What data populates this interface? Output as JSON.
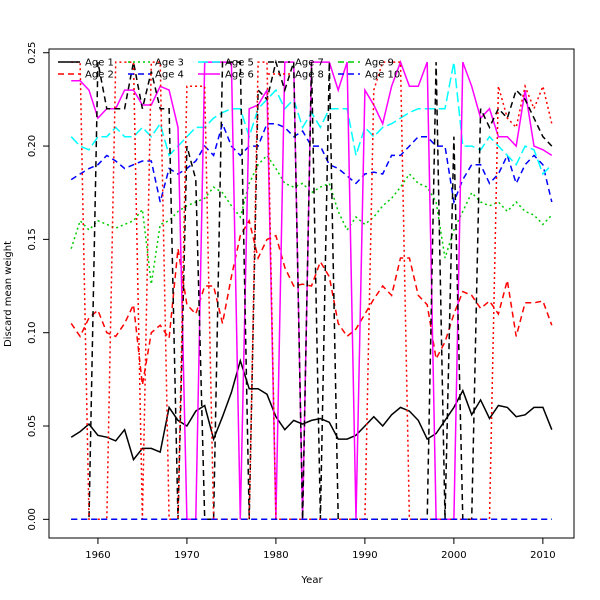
{
  "chart_data": {
    "type": "line",
    "xlabel": "Year",
    "ylabel": "Discard mean weight",
    "xlim": [
      1954.5,
      2013.5
    ],
    "ylim": [
      -0.01,
      0.252
    ],
    "xticks": [
      1960,
      1970,
      1980,
      1990,
      2000,
      2010
    ],
    "yticks": [
      0.0,
      0.05,
      0.1,
      0.15,
      0.2,
      0.25
    ],
    "ytick_labels": [
      "0.00",
      "0.05",
      "0.10",
      "0.15",
      "0.20",
      "0.25"
    ],
    "grid": false,
    "legend_position": "top",
    "x": [
      1957,
      1958,
      1959,
      1960,
      1961,
      1962,
      1963,
      1964,
      1965,
      1966,
      1967,
      1968,
      1969,
      1970,
      1971,
      1972,
      1973,
      1974,
      1975,
      1976,
      1977,
      1978,
      1979,
      1980,
      1981,
      1982,
      1983,
      1984,
      1985,
      1986,
      1987,
      1988,
      1989,
      1990,
      1991,
      1992,
      1993,
      1994,
      1995,
      1996,
      1997,
      1998,
      1999,
      2000,
      2001,
      2002,
      2003,
      2004,
      2005,
      2006,
      2007,
      2008,
      2009,
      2010,
      2011
    ],
    "series": [
      {
        "name": "Age 1",
        "color": "#000000",
        "dash": "solid",
        "values": [
          0.044,
          0.047,
          0.051,
          0.045,
          0.044,
          0.042,
          0.048,
          0.032,
          0.038,
          0.038,
          0.036,
          0.06,
          0.053,
          0.05,
          0.058,
          0.061,
          0.043,
          0.055,
          0.068,
          0.085,
          0.07,
          0.07,
          0.067,
          0.055,
          0.048,
          0.053,
          0.051,
          0.053,
          0.054,
          0.052,
          0.043,
          0.043,
          0.045,
          0.05,
          0.055,
          0.05,
          0.056,
          0.06,
          0.058,
          0.053,
          0.043,
          0.046,
          0.053,
          0.06,
          0.069,
          0.056,
          0.064,
          0.054,
          0.061,
          0.06,
          0.055,
          0.056,
          0.06,
          0.06,
          0.048
        ]
      },
      {
        "name": "Age 2",
        "color": "#ff0000",
        "dash": "dashed",
        "values": [
          0.105,
          0.098,
          0.108,
          0.112,
          0.1,
          0.098,
          0.105,
          0.115,
          0.072,
          0.1,
          0.104,
          0.097,
          0.145,
          0.115,
          0.11,
          0.125,
          0.125,
          0.105,
          0.13,
          0.152,
          0.16,
          0.14,
          0.15,
          0.152,
          0.135,
          0.125,
          0.126,
          0.125,
          0.138,
          0.13,
          0.105,
          0.098,
          0.102,
          0.11,
          0.118,
          0.125,
          0.12,
          0.14,
          0.14,
          0.12,
          0.115,
          0.086,
          0.095,
          0.11,
          0.122,
          0.12,
          0.113,
          0.117,
          0.11,
          0.128,
          0.098,
          0.116,
          0.116,
          0.117,
          0.104
        ]
      },
      {
        "name": "Age 3",
        "color": "#00cd00",
        "dash": "dotted",
        "values": [
          0.145,
          0.16,
          0.155,
          0.16,
          0.158,
          0.156,
          0.158,
          0.16,
          0.166,
          0.126,
          0.158,
          0.16,
          0.165,
          0.168,
          0.17,
          0.172,
          0.178,
          0.175,
          0.168,
          0.162,
          0.18,
          0.19,
          0.195,
          0.188,
          0.18,
          0.178,
          0.18,
          0.175,
          0.178,
          0.18,
          0.165,
          0.155,
          0.162,
          0.158,
          0.162,
          0.168,
          0.172,
          0.178,
          0.185,
          0.18,
          0.178,
          0.17,
          0.14,
          0.155,
          0.165,
          0.175,
          0.17,
          0.168,
          0.17,
          0.165,
          0.17,
          0.165,
          0.163,
          0.158,
          0.163
        ]
      },
      {
        "name": "Age 4",
        "color": "#0000ff",
        "dash": "dashed",
        "values": [
          0.182,
          0.185,
          0.188,
          0.19,
          0.195,
          0.192,
          0.188,
          0.19,
          0.192,
          0.192,
          0.17,
          0.188,
          0.185,
          0.188,
          0.192,
          0.2,
          0.195,
          0.212,
          0.2,
          0.195,
          0.2,
          0.2,
          0.212,
          0.212,
          0.21,
          0.205,
          0.208,
          0.2,
          0.2,
          0.19,
          0.188,
          0.184,
          0.18,
          0.185,
          0.186,
          0.185,
          0.195,
          0.195,
          0.2,
          0.205,
          0.205,
          0.2,
          0.2,
          0.17,
          0.182,
          0.19,
          0.19,
          0.18,
          0.185,
          0.195,
          0.18,
          0.19,
          0.195,
          0.19,
          0.17
        ]
      },
      {
        "name": "Age 5",
        "color": "#00ffff",
        "dash": "longdash",
        "values": [
          0.205,
          0.2,
          0.198,
          0.205,
          0.205,
          0.21,
          0.205,
          0.205,
          0.21,
          0.205,
          0.212,
          0.195,
          0.2,
          0.205,
          0.21,
          0.21,
          0.215,
          0.218,
          0.22,
          0.22,
          0.205,
          0.22,
          0.225,
          0.23,
          0.22,
          0.225,
          0.21,
          0.218,
          0.21,
          0.22,
          0.22,
          0.22,
          0.195,
          0.21,
          0.205,
          0.21,
          0.212,
          0.215,
          0.218,
          0.22,
          0.22,
          0.22,
          0.22,
          0.245,
          0.2,
          0.2,
          0.198,
          0.205,
          0.2,
          0.195,
          0.19,
          0.2,
          0.198,
          0.185,
          0.19
        ]
      },
      {
        "name": "Age 6",
        "color": "#ff00ff",
        "dash": "solid",
        "values": [
          0.235,
          0.235,
          0.23,
          0.215,
          0.22,
          0.22,
          0.23,
          0.23,
          0.222,
          0.222,
          0.232,
          0.23,
          0.21,
          0.0,
          0.0,
          0.245,
          0.245,
          0.245,
          0.245,
          0.0,
          0.22,
          0.222,
          0.23,
          0.0,
          0.245,
          0.245,
          0.0,
          0.245,
          0.245,
          0.245,
          0.23,
          0.245,
          0.0,
          0.23,
          0.222,
          0.212,
          0.232,
          0.245,
          0.232,
          0.232,
          0.245,
          0.0,
          0.0,
          0.0,
          0.245,
          0.232,
          0.215,
          0.22,
          0.205,
          0.205,
          0.2,
          0.23,
          0.2,
          0.198,
          0.195
        ]
      },
      {
        "name": "Age 7",
        "color": "#000000",
        "dash": "dashed",
        "values": [
          0.0,
          0.0,
          0.0,
          0.245,
          0.22,
          0.22,
          0.22,
          0.245,
          0.22,
          0.24,
          0.22,
          0.22,
          0.0,
          0.2,
          0.182,
          0.0,
          0.0,
          0.245,
          0.245,
          0.245,
          0.0,
          0.23,
          0.225,
          0.245,
          0.23,
          0.245,
          0.0,
          0.245,
          0.0,
          0.245,
          0.0,
          0.0,
          0.0,
          0.0,
          0.0,
          0.0,
          0.0,
          0.0,
          0.0,
          0.0,
          0.0,
          0.245,
          0.0,
          0.205,
          0.0,
          0.0,
          0.22,
          0.21,
          0.22,
          0.215,
          0.23,
          0.225,
          0.215,
          0.205,
          0.2
        ]
      },
      {
        "name": "Age 8",
        "color": "#ff0000",
        "dash": "dotted",
        "values": [
          0.245,
          0.245,
          0.0,
          0.0,
          0.0,
          0.245,
          0.245,
          0.245,
          0.0,
          0.245,
          0.245,
          0.0,
          0.0,
          0.232,
          0.232,
          0.232,
          0.0,
          0.0,
          0.0,
          0.0,
          0.0,
          0.245,
          0.245,
          0.0,
          0.0,
          0.0,
          0.0,
          0.0,
          0.0,
          0.0,
          0.0,
          0.0,
          0.0,
          0.0,
          0.23,
          0.245,
          0.245,
          0.245,
          0.0,
          0.0,
          0.0,
          0.0,
          0.0,
          0.0,
          0.0,
          0.0,
          0.0,
          0.0,
          0.232,
          0.215,
          0.21,
          0.232,
          0.22,
          0.232,
          0.212
        ]
      },
      {
        "name": "Age 9",
        "color": "#00cd00",
        "dash": "dashed",
        "values": [
          0.0,
          0.0,
          0.0,
          0.0,
          0.0,
          0.0,
          0.0,
          0.0,
          0.0,
          0.0,
          0.0,
          0.0,
          0.0,
          0.0,
          0.0,
          0.0,
          0.0,
          0.0,
          0.0,
          0.0,
          0.0,
          0.0,
          0.0,
          0.0,
          0.0,
          0.0,
          0.0,
          0.0,
          0.0,
          0.0,
          0.0,
          0.0,
          0.0,
          0.0,
          0.0,
          0.0,
          0.0,
          0.0,
          0.0,
          0.0,
          0.0,
          0.0,
          0.0,
          0.0,
          0.0,
          0.0,
          0.0,
          0.0,
          0.0,
          0.0,
          0.0,
          0.0,
          0.0,
          0.0,
          0.0
        ]
      },
      {
        "name": "Age 10",
        "color": "#0000ff",
        "dash": "dashed",
        "values": [
          0.0,
          0.0,
          0.0,
          0.0,
          0.0,
          0.0,
          0.0,
          0.0,
          0.0,
          0.0,
          0.0,
          0.0,
          0.0,
          0.0,
          0.0,
          0.0,
          0.0,
          0.0,
          0.0,
          0.0,
          0.0,
          0.0,
          0.0,
          0.0,
          0.0,
          0.0,
          0.0,
          0.0,
          0.0,
          0.0,
          0.0,
          0.0,
          0.0,
          0.0,
          0.0,
          0.0,
          0.0,
          0.0,
          0.0,
          0.0,
          0.0,
          0.0,
          0.0,
          0.0,
          0.0,
          0.0,
          0.0,
          0.0,
          0.0,
          0.0,
          0.0,
          0.0,
          0.0,
          0.0,
          0.0
        ]
      }
    ]
  }
}
